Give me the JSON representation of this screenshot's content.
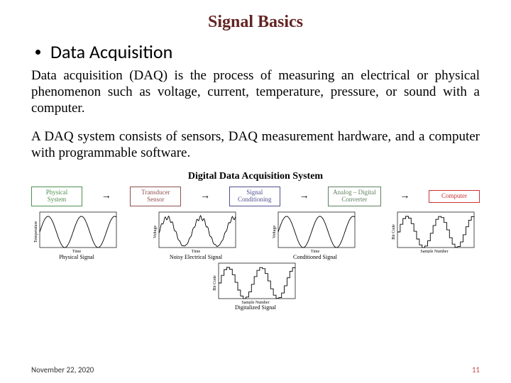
{
  "title": "Signal Basics",
  "bullet": "Data Acquisition",
  "para1": "Data acquisition (DAQ) is the process of measuring an electrical or physical phenomenon such as voltage, current, temperature, pressure, or sound with a computer.",
  "para2": "A DAQ system consists of sensors, DAQ measurement hardware, and a computer with programmable software.",
  "diagram": {
    "title": "Digital Data Acquisition System",
    "boxes": [
      {
        "line1": "Physical",
        "line2": "System",
        "border": "#4f8f4f",
        "text": "#4f8f4f"
      },
      {
        "line1": "Transducer",
        "line2": "Sensor",
        "border": "#8f4f4f",
        "text": "#8f4f4f"
      },
      {
        "line1": "Signal",
        "line2": "Conditioning",
        "border": "#4f4f8f",
        "text": "#4f4f8f"
      },
      {
        "line1": "Analog – Digital",
        "line2": "Converter",
        "border": "#5f7f5f",
        "text": "#5f7f5f"
      },
      {
        "line1": "Computer",
        "line2": "",
        "border": "#cc3333",
        "text": "#cc3333"
      }
    ],
    "arrow": "→",
    "charts": [
      {
        "caption": "Physical Signal",
        "xlabel": "Time",
        "ylabel": "Temperature",
        "stroke": "#000000",
        "type": "sine_clean",
        "amplitude": 22,
        "periods": 2.3
      },
      {
        "caption": "Noisy Electrical Signal",
        "xlabel": "Time",
        "ylabel": "Voltage",
        "stroke": "#000000",
        "type": "sine_noisy",
        "amplitude": 20,
        "periods": 2.3,
        "noise": 3
      },
      {
        "caption": "Conditioned Signal",
        "xlabel": "Time",
        "ylabel": "Voltage",
        "stroke": "#000000",
        "type": "sine_clean",
        "amplitude": 22,
        "periods": 2.3
      },
      {
        "caption": "",
        "xlabel": "Sample Number",
        "ylabel": "Bit Code",
        "stroke": "#000000",
        "type": "stairs",
        "amplitude": 22,
        "periods": 2.3,
        "steps": 28
      }
    ],
    "digitized_caption": "Digitalized Signal",
    "chart_box": {
      "w": 120,
      "h": 60,
      "axis_color": "#000000",
      "label_fontsize": 6
    }
  },
  "footer": {
    "date": "November 22, 2020",
    "page": "11"
  },
  "colors": {
    "title": "#632423",
    "page_number": "#c0504d"
  }
}
